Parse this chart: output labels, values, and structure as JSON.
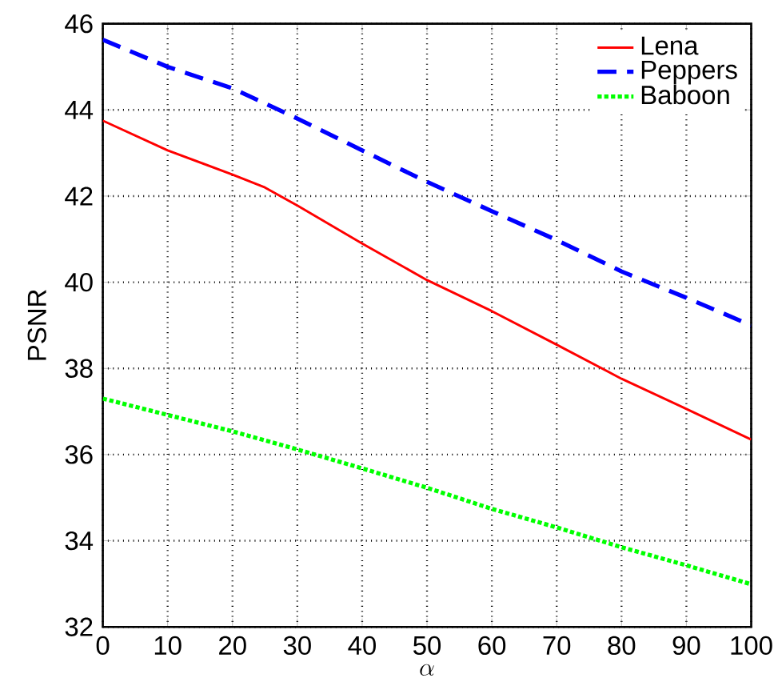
{
  "chart_data": {
    "type": "line",
    "xlabel": "\\alpha",
    "ylabel": "PSNR",
    "x": [
      0,
      10,
      20,
      25,
      30,
      40,
      50,
      60,
      70,
      80,
      90,
      100
    ],
    "xlim": [
      0,
      100
    ],
    "xticks": [
      0,
      10,
      20,
      30,
      40,
      50,
      60,
      70,
      80,
      90,
      100
    ],
    "ylim": [
      32,
      46
    ],
    "yticks": [
      32,
      34,
      36,
      38,
      40,
      42,
      44,
      46
    ],
    "grid": true,
    "legend": "top right",
    "marker": "none",
    "series": [
      {
        "name": "Lena",
        "color": "#ff0000",
        "line_style": "solid",
        "values": [
          43.75,
          43.06,
          42.5,
          42.2,
          41.78,
          40.9,
          40.05,
          39.33,
          38.55,
          37.76,
          37.06,
          36.35
        ]
      },
      {
        "name": "Peppers",
        "color": "#0000ff",
        "line_style": "dashed",
        "values": [
          45.63,
          45.0,
          44.5,
          44.15,
          43.8,
          43.06,
          42.33,
          41.65,
          40.98,
          40.25,
          39.64,
          39.0
        ]
      },
      {
        "name": "Baboon",
        "color": "#00ff00",
        "line_style": "dotted",
        "values": [
          37.3,
          36.92,
          36.54,
          36.33,
          36.12,
          35.68,
          35.23,
          34.74,
          34.31,
          33.85,
          33.43,
          32.99
        ]
      }
    ]
  }
}
